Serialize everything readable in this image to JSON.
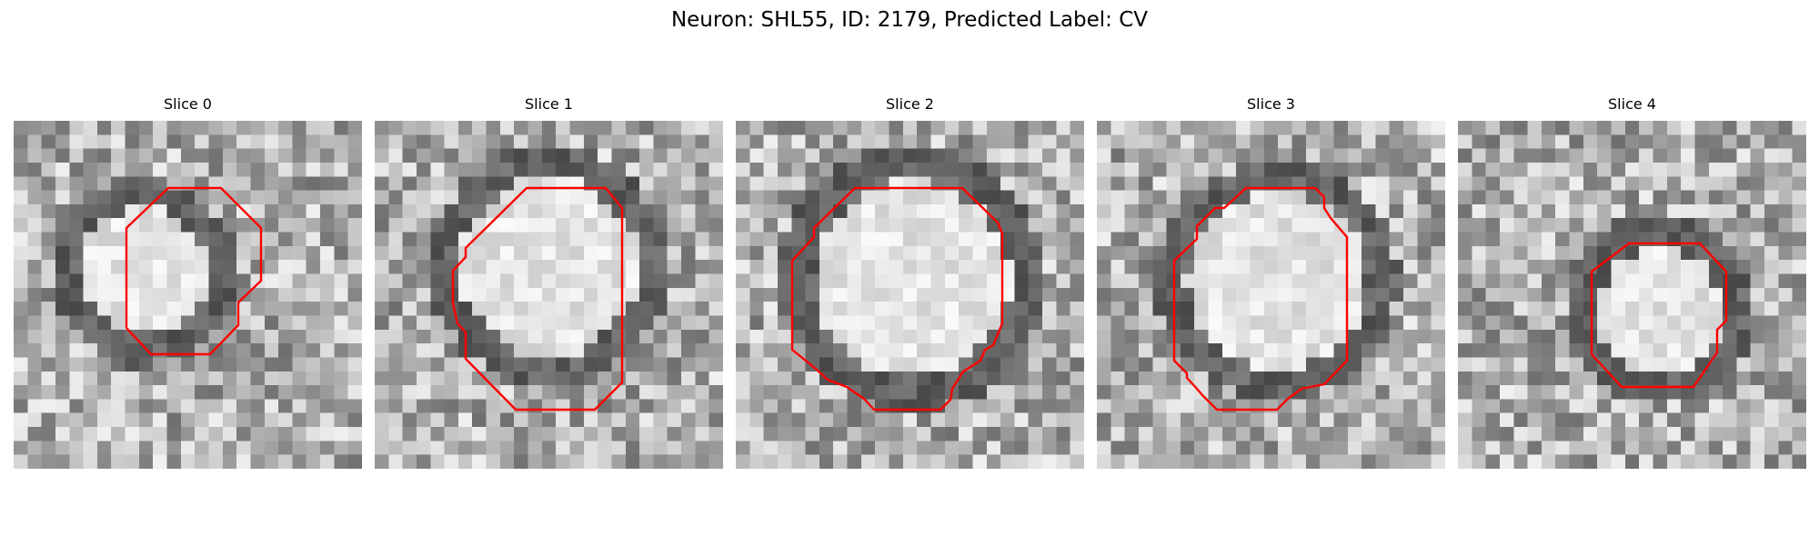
{
  "figure": {
    "title": "Neuron: SHL55, ID: 2179, Predicted Label: CV",
    "contour_color": "#ff0000",
    "colormap": "grayscale"
  },
  "panels": [
    {
      "title": "Slice 0"
    },
    {
      "title": "Slice 1"
    },
    {
      "title": "Slice 2"
    },
    {
      "title": "Slice 3"
    },
    {
      "title": "Slice 4"
    }
  ]
}
